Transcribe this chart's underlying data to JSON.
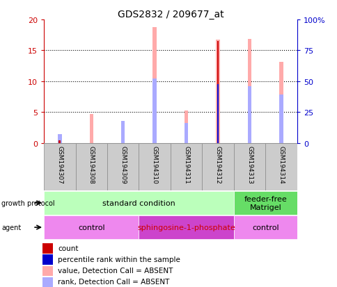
{
  "title": "GDS2832 / 209677_at",
  "samples": [
    "GSM194307",
    "GSM194308",
    "GSM194309",
    "GSM194310",
    "GSM194311",
    "GSM194312",
    "GSM194313",
    "GSM194314"
  ],
  "ylim_left": [
    0,
    20
  ],
  "ylim_right": [
    0,
    100
  ],
  "yticks_left": [
    0,
    5,
    10,
    15,
    20
  ],
  "yticks_right": [
    0,
    25,
    50,
    75,
    100
  ],
  "count_values": [
    0.5,
    0.0,
    0.0,
    0.0,
    0.0,
    16.5,
    0.0,
    0.0
  ],
  "percentile_values": [
    0.0,
    0.0,
    0.0,
    0.0,
    0.0,
    9.5,
    0.0,
    0.0
  ],
  "value_absent": [
    1.0,
    4.7,
    2.1,
    18.8,
    5.3,
    16.7,
    16.8,
    13.2
  ],
  "rank_absent": [
    1.5,
    0.0,
    3.6,
    10.4,
    3.3,
    0.0,
    9.2,
    7.9
  ],
  "growth_protocol_labels": [
    "standard condition",
    "feeder-free\nMatrigel"
  ],
  "growth_protocol_starts": [
    0,
    6
  ],
  "growth_protocol_ends": [
    6,
    8
  ],
  "growth_protocol_colors": [
    "#bbffbb",
    "#66dd66"
  ],
  "agent_labels": [
    "control",
    "sphingosine-1-phosphate",
    "control"
  ],
  "agent_starts": [
    0,
    3,
    6
  ],
  "agent_ends": [
    3,
    6,
    8
  ],
  "agent_colors": [
    "#ee88ee",
    "#cc44cc",
    "#ee88ee"
  ],
  "agent_text_colors": [
    "#000000",
    "#cc0000",
    "#000000"
  ],
  "colors": {
    "count": "#cc0000",
    "percentile": "#0000cc",
    "value_absent": "#ffaaaa",
    "rank_absent": "#aaaaff",
    "sample_box": "#cccccc",
    "sample_border": "#888888",
    "left_axis": "#cc0000",
    "right_axis": "#0000cc"
  },
  "legend_items": [
    {
      "label": "count",
      "color": "#cc0000"
    },
    {
      "label": "percentile rank within the sample",
      "color": "#0000cc"
    },
    {
      "label": "value, Detection Call = ABSENT",
      "color": "#ffaaaa"
    },
    {
      "label": "rank, Detection Call = ABSENT",
      "color": "#aaaaff"
    }
  ]
}
